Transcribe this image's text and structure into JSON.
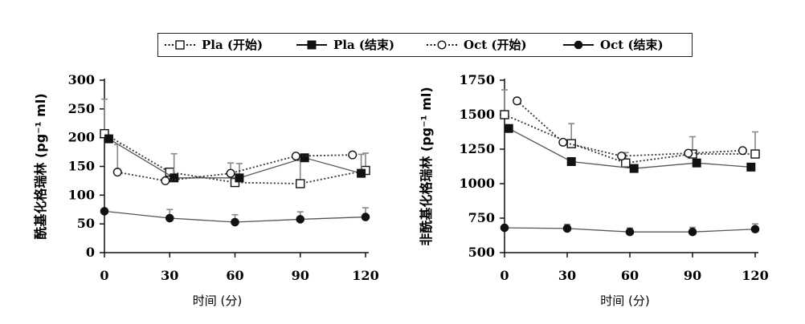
{
  "legend": [
    {
      "label": "Pla (开始)",
      "line": "dotted",
      "marker": "open-square"
    },
    {
      "label": "Pla (结束)",
      "line": "solid",
      "marker": "filled-square"
    },
    {
      "label": "Oct (开始)",
      "line": "dotted",
      "marker": "open-circle"
    },
    {
      "label": "Oct (结束)",
      "line": "solid",
      "marker": "filled-circle"
    }
  ],
  "colors": {
    "series_line": "#555555",
    "marker": "#111111",
    "error_bar": "#888888"
  },
  "chart_data": [
    {
      "type": "line",
      "xlabel": "时间 (分)",
      "ylabel": "酰基化格瑞林 (pg⁻¹ ml)",
      "x_ticks": [
        0,
        30,
        60,
        90,
        120
      ],
      "y_ticks": [
        0,
        50,
        100,
        150,
        200,
        250,
        300
      ],
      "xlim": [
        0,
        120
      ],
      "ylim": [
        0,
        300
      ],
      "series": [
        {
          "name": "Pla (开始)",
          "x": [
            0,
            30,
            60,
            90,
            120
          ],
          "y": [
            207,
            140,
            122,
            120,
            143
          ],
          "err": [
            60,
            0,
            0,
            40,
            30
          ]
        },
        {
          "name": "Pla (结束)",
          "x": [
            2,
            32,
            62,
            92,
            118
          ],
          "y": [
            198,
            130,
            130,
            165,
            138
          ],
          "err": [
            0,
            42,
            25,
            0,
            33
          ]
        },
        {
          "name": "Oct (开始)",
          "x": [
            6,
            28,
            58,
            88,
            114
          ],
          "y": [
            140,
            125,
            138,
            168,
            170
          ],
          "err": [
            48,
            0,
            18,
            0,
            0
          ]
        },
        {
          "name": "Oct (结束)",
          "x": [
            0,
            30,
            60,
            90,
            120
          ],
          "y": [
            72,
            60,
            53,
            58,
            62
          ],
          "err": [
            0,
            15,
            13,
            13,
            16
          ]
        }
      ]
    },
    {
      "type": "line",
      "xlabel": "时间 (分)",
      "ylabel": "非酰基化格瑞林 (pg⁻¹ ml)",
      "x_ticks": [
        0,
        30,
        60,
        90,
        120
      ],
      "y_ticks": [
        500,
        750,
        1000,
        1250,
        1500,
        1750
      ],
      "xlim": [
        0,
        120
      ],
      "ylim": [
        500,
        1750
      ],
      "series": [
        {
          "name": "Pla (开始)",
          "x": [
            0,
            32,
            58,
            90,
            120
          ],
          "y": [
            1500,
            1290,
            1150,
            1215,
            1215
          ],
          "err": [
            180,
            145,
            75,
            125,
            160
          ]
        },
        {
          "name": "Pla (结束)",
          "x": [
            2,
            32,
            62,
            92,
            118
          ],
          "y": [
            1400,
            1160,
            1110,
            1150,
            1120
          ],
          "err": [
            0,
            0,
            0,
            0,
            0
          ]
        },
        {
          "name": "Oct (开始)",
          "x": [
            6,
            28,
            56,
            88,
            114
          ],
          "y": [
            1600,
            1300,
            1200,
            1220,
            1240
          ],
          "err": [
            0,
            0,
            0,
            0,
            0
          ]
        },
        {
          "name": "Oct (结束)",
          "x": [
            0,
            30,
            60,
            90,
            120
          ],
          "y": [
            680,
            675,
            650,
            650,
            670
          ],
          "err": [
            0,
            30,
            28,
            33,
            38
          ]
        }
      ]
    }
  ]
}
